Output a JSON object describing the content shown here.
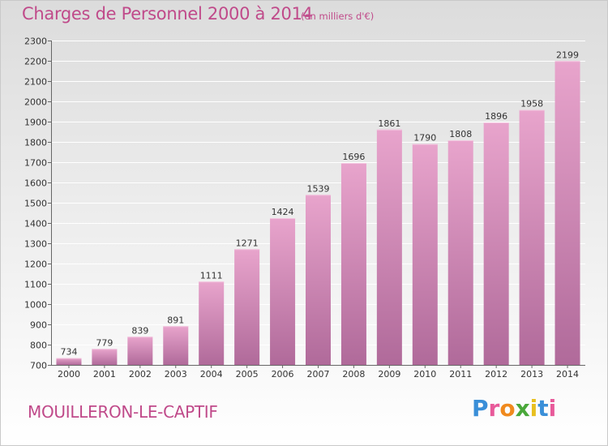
{
  "title": "Charges de Personnel 2000 à 2014",
  "subtitle": "(en milliers d'€)",
  "place": "MOUILLERON-LE-CAPTIF",
  "logo": {
    "text": "Proxiti",
    "colors": [
      "#3a8fd8",
      "#e85a9a",
      "#f08a1e",
      "#4aa83a",
      "#e8c020",
      "#3a8fd8",
      "#e85a9a"
    ]
  },
  "colors": {
    "bar_top": "#e8a4cc",
    "bar_bottom": "#b06a9a",
    "title": "#c04a8a",
    "grid": "#ffffff"
  },
  "chart_data": {
    "type": "bar",
    "title": "Charges de Personnel 2000 à 2014",
    "subtitle": "(en milliers d'€)",
    "categories": [
      "2000",
      "2001",
      "2002",
      "2003",
      "2004",
      "2005",
      "2006",
      "2007",
      "2008",
      "2009",
      "2010",
      "2011",
      "2012",
      "2013",
      "2014"
    ],
    "values": [
      734,
      779,
      839,
      891,
      1111,
      1271,
      1424,
      1539,
      1696,
      1861,
      1790,
      1808,
      1896,
      1958,
      2199
    ],
    "ylim": [
      700,
      2300
    ],
    "yticks": [
      700,
      800,
      900,
      1000,
      1100,
      1200,
      1300,
      1400,
      1500,
      1600,
      1700,
      1800,
      1900,
      2000,
      2100,
      2200,
      2300
    ],
    "grid": true,
    "data_labels": true
  }
}
